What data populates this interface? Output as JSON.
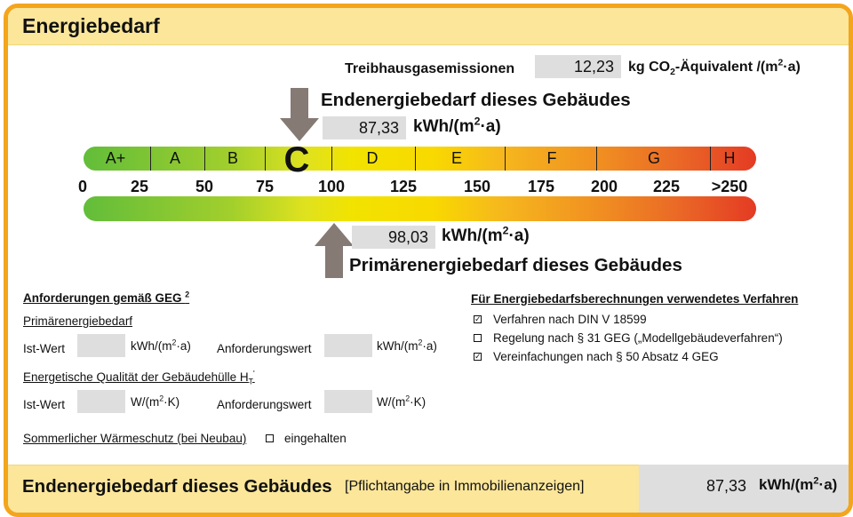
{
  "header": {
    "title": "Energiebedarf"
  },
  "emissions": {
    "label": "Treibhausgasemissionen",
    "value": "12,23",
    "unit_pre": "kg CO",
    "unit_sub": "2",
    "unit_post": "-Äquivalent /(m",
    "unit_sup": "2",
    "unit_end": "·a)"
  },
  "end_energy": {
    "title": "Endenergiebedarf dieses Gebäudes",
    "value": "87,33",
    "unit_pre": "kWh/(m",
    "unit_sup": "2",
    "unit_end": "·a)"
  },
  "primary_energy": {
    "title": "Primärenergiebedarf dieses Gebäudes",
    "value": "98,03",
    "unit_pre": "kWh/(m",
    "unit_sup": "2",
    "unit_end": "·a)"
  },
  "scale": {
    "classes": [
      "A+",
      "A",
      "B",
      "C",
      "D",
      "E",
      "F",
      "G",
      "H"
    ],
    "active_class": "C",
    "ticks": [
      "0",
      "25",
      "50",
      "75",
      "100",
      "125",
      "150",
      "175",
      "200",
      "225",
      ">250"
    ],
    "end_energy_value": 87.33,
    "primary_energy_value": 98.03
  },
  "requirements": {
    "heading": "Anforderungen gemäß GEG",
    "heading_sup": "2",
    "primary_heading": "Primärenergiebedarf",
    "ist_label": "Ist-Wert",
    "ist_unit_pre": "kWh/(m",
    "ist_unit_sup": "2",
    "ist_unit_end": "·a)",
    "anf_label": "Anforderungswert",
    "anf_unit_pre": "kWh/(m",
    "anf_unit_sup": "2",
    "anf_unit_end": "·a)",
    "quality_heading": "Energetische Qualität der Gebäudehülle H",
    "quality_sub": "T",
    "quality_sup": "'",
    "ist2_label": "Ist-Wert",
    "ist2_unit_pre": "W/(m",
    "ist2_unit_sup": "2",
    "ist2_unit_end": "·K)",
    "anf2_label": "Anforderungswert",
    "anf2_unit_pre": "W/(m",
    "anf2_unit_sup": "2",
    "anf2_unit_end": "·K)",
    "summer_label": "Sommerlicher Wärmeschutz (bei Neubau)",
    "summer_check_label": "eingehalten"
  },
  "method": {
    "heading": "Für Energiebedarfsberechnungen verwendetes Verfahren",
    "options": [
      {
        "label": "Verfahren nach DIN V 18599",
        "checked": true,
        "mark": "☑"
      },
      {
        "label": "Regelung nach § 31 GEG („Modellgebäudeverfahren“)",
        "checked": false,
        "mark": "☐"
      },
      {
        "label": "Vereinfachungen nach § 50 Absatz 4 GEG",
        "checked": true,
        "mark": "☑"
      }
    ]
  },
  "footer": {
    "title": "Endenergiebedarf dieses Gebäudes",
    "note": "[Pflichtangabe in Immobilienanzeigen]",
    "value": "87,33",
    "unit_pre": "kWh/(m",
    "unit_sup": "2",
    "unit_end": "·a)"
  },
  "colors": {
    "frame": "#f3a51c",
    "band": "#fbe69a",
    "value_box": "#dedede",
    "arrow": "#857a74"
  }
}
